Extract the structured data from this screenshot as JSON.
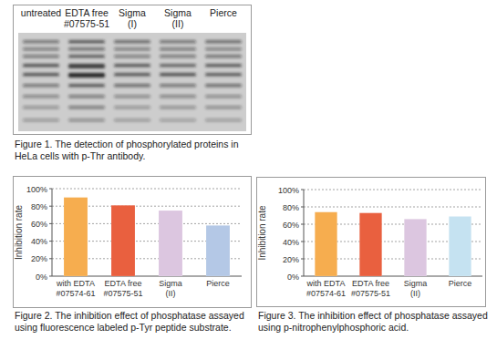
{
  "blot": {
    "lanes": [
      "untreated",
      "EDTA free\n#07575-51",
      "Sigma\n(I)",
      "Sigma\n(II)",
      "Pierce"
    ],
    "caption": "Figure 1. The detection of phosphorylated proteins in HeLa cells with p-Thr antibody."
  },
  "chart_data": [
    {
      "type": "bar",
      "caption": "Figure 2. The inhibition effect of phosphatase assayed using fluorescence labeled p-Tyr peptide substrate.",
      "y_label": "Inhibition rate",
      "categories": [
        "with EDTA\n#07574-61",
        "EDTA free\n#07575-51",
        "Sigma\n(II)",
        "Pierce"
      ],
      "values": [
        90,
        81,
        75,
        58
      ],
      "colors": [
        "#f6ad4f",
        "#e9603f",
        "#dcc6e0",
        "#b4c8e6"
      ],
      "ylim": [
        0,
        100
      ],
      "yticks": [
        {
          "value": 0,
          "label": "0%"
        },
        {
          "value": 20,
          "label": "20%"
        },
        {
          "value": 40,
          "label": "40%"
        },
        {
          "value": 60,
          "label": "60%"
        },
        {
          "value": 80,
          "label": "80%"
        },
        {
          "value": 100,
          "label": "100%"
        }
      ],
      "grid": true
    },
    {
      "type": "bar",
      "caption": "Figure 3. The inhibition effect of phosphatase assayed using p-nitrophenylphosphoric acid.",
      "y_label": "Inhibition rate",
      "categories": [
        "with EDTA\n#07574-61",
        "EDTA free\n#07575-51",
        "Sigma\n(II)",
        "Pierce"
      ],
      "values": [
        74,
        73,
        66,
        69
      ],
      "colors": [
        "#f6ad4f",
        "#e9603f",
        "#dcc6e0",
        "#c5e2f1"
      ],
      "ylim": [
        0,
        100
      ],
      "yticks": [
        {
          "value": 0,
          "label": "0%"
        },
        {
          "value": 20,
          "label": "20%"
        },
        {
          "value": 40,
          "label": "40%"
        },
        {
          "value": 60,
          "label": "60%"
        },
        {
          "value": 80,
          "label": "80%"
        },
        {
          "value": 100,
          "label": "100%"
        }
      ],
      "grid": true
    }
  ]
}
